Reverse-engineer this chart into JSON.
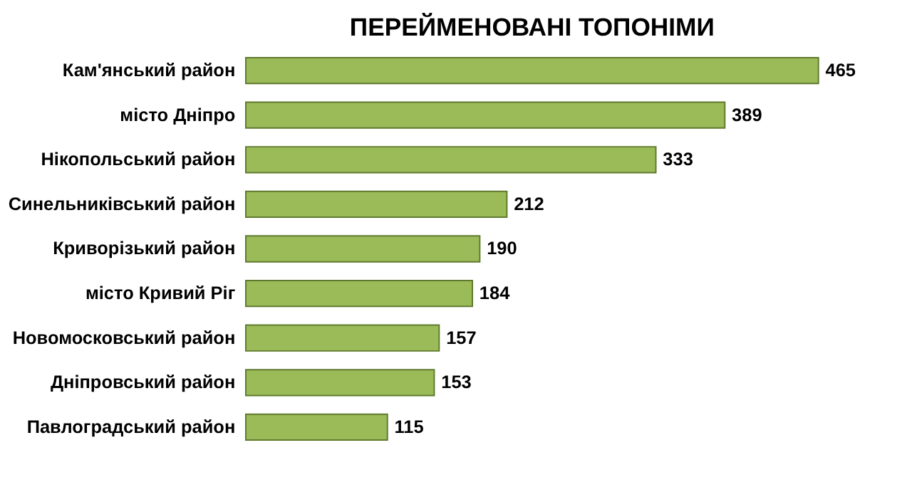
{
  "chart_data": {
    "type": "bar",
    "orientation": "horizontal",
    "title": "ПЕРЕЙМЕНОВАНІ ТОПОНІМИ",
    "categories": [
      "Кам'янський район",
      "місто Дніпро",
      "Нікопольський район",
      "Синельниківський район",
      "Криворізький район",
      "місто Кривий Ріг",
      "Новомосковський район",
      "Дніпровський район",
      "Павлоградський район"
    ],
    "values": [
      465,
      389,
      333,
      212,
      190,
      184,
      157,
      153,
      115
    ],
    "color": "#9bbb59",
    "data_labels": true,
    "grid": false
  }
}
